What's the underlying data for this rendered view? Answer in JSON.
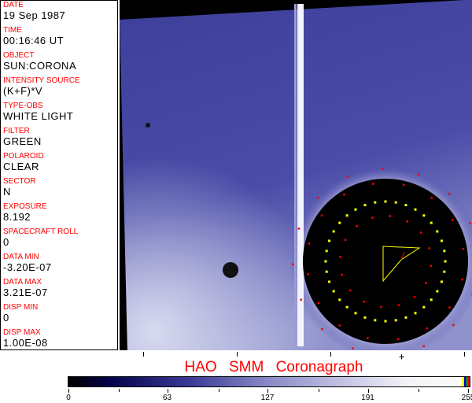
{
  "header_fields": [
    {
      "label": "DATE",
      "value": "19 Sep 1987"
    },
    {
      "label": "TIME",
      "value": "00:16:46 UT"
    },
    {
      "label": "OBJECT",
      "value": "SUN:CORONA"
    },
    {
      "label": "INTENSITY SOURCE",
      "value": "(K+F)*V"
    },
    {
      "label": "TYPE-OBS",
      "value": "WHITE LIGHT"
    },
    {
      "label": "FILTER",
      "value": "GREEN"
    },
    {
      "label": "POLAROID",
      "value": "CLEAR"
    },
    {
      "label": "SECTOR",
      "value": "N"
    },
    {
      "label": "EXPOSURE",
      "value": "8.192"
    },
    {
      "label": "SPACECRAFT ROLL",
      "value": "0"
    },
    {
      "label": "DATA MIN",
      "value": "-3.20E-07"
    },
    {
      "label": "DATA MAX",
      "value": "3.21E-07"
    },
    {
      "label": "DISP MIN",
      "value": "0"
    },
    {
      "label": "DISP MAX",
      "value": "1.00E-08"
    }
  ],
  "title": "HAO  SMM Coronagraph",
  "colorbar": {
    "ticks": [
      "0",
      "63",
      "127",
      "191",
      "255"
    ],
    "min": 0,
    "max": 255,
    "colormap": "black-blue-white",
    "overlay_colors": [
      "#ffff00",
      "#0000cc",
      "#00aa00",
      "#ff0000"
    ]
  },
  "overlay_colors": {
    "ring": "#ffff00",
    "markers": "#ff0000"
  }
}
